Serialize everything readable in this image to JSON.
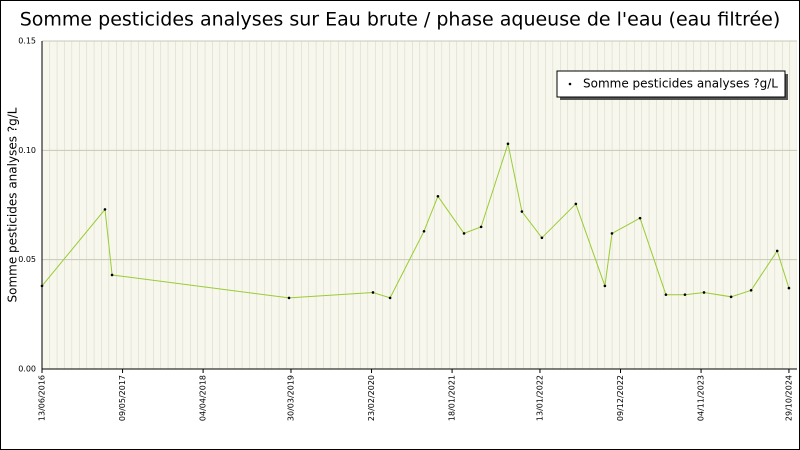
{
  "chart_data": {
    "type": "line",
    "title": "Somme pesticides analyses sur Eau brute / phase aqueuse de l'eau (eau filtrée)",
    "y_label": "Somme pesticides analyses ?g/L",
    "x": [
      "2016-06-13",
      "2017-02-26",
      "2017-03-27",
      "2019-03-22",
      "2020-02-29",
      "2020-05-09",
      "2020-09-25",
      "2020-11-21",
      "2021-03-08",
      "2021-05-17",
      "2021-09-04",
      "2021-10-31",
      "2022-01-21",
      "2022-06-09",
      "2022-10-06",
      "2022-11-04",
      "2023-02-27",
      "2023-06-13",
      "2023-08-30",
      "2023-11-16",
      "2024-03-06",
      "2024-05-27",
      "2024-09-11",
      "2024-10-29"
    ],
    "series": [
      {
        "name": "Somme pesticides analyses ?g/L",
        "color": "#99cc33",
        "values": [
          0.038,
          0.073,
          0.043,
          0.0325,
          0.035,
          0.0325,
          0.063,
          0.079,
          0.062,
          0.065,
          0.103,
          0.072,
          0.06,
          0.0755,
          0.038,
          0.062,
          0.069,
          0.034,
          0.034,
          0.035,
          0.033,
          0.036,
          0.054,
          0.037
        ]
      }
    ],
    "xlim": [
      "2016-06-13",
      "2024-12-01"
    ],
    "xticks": [
      {
        "value": "2016-06-13",
        "label": "13/06/2016"
      },
      {
        "value": "2017-05-09",
        "label": "09/05/2017"
      },
      {
        "value": "2018-04-04",
        "label": "04/04/2018"
      },
      {
        "value": "2019-03-30",
        "label": "30/03/2019"
      },
      {
        "value": "2020-02-23",
        "label": "23/02/2020"
      },
      {
        "value": "2021-01-18",
        "label": "18/01/2021"
      },
      {
        "value": "2022-01-13",
        "label": "13/01/2022"
      },
      {
        "value": "2022-12-09",
        "label": "09/12/2022"
      },
      {
        "value": "2023-11-04",
        "label": "04/11/2023"
      },
      {
        "value": "2024-10-29",
        "label": "29/10/2024"
      }
    ],
    "ylim": [
      0,
      0.15
    ],
    "yticks": [
      {
        "value": 0,
        "label": "0.00"
      },
      {
        "value": 0.05,
        "label": "0.05"
      },
      {
        "value": 0.1,
        "label": "0.10"
      },
      {
        "value": 0.15,
        "label": "0.15"
      }
    ],
    "grid": true,
    "legend": "top-right"
  }
}
